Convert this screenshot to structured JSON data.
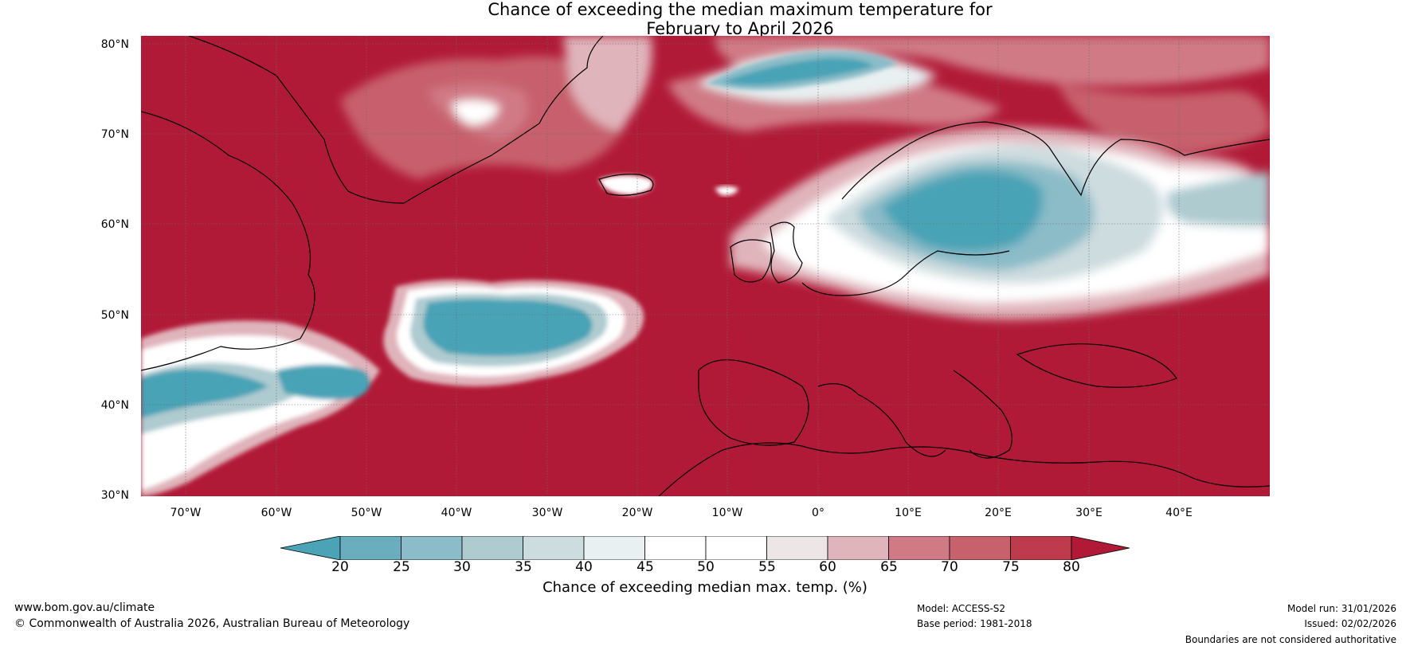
{
  "title": {
    "line1": "Chance of exceeding the median maximum temperature for",
    "line2": "February to April 2026"
  },
  "axes": {
    "latitude_labels": [
      "80°N",
      "70°N",
      "60°N",
      "50°N",
      "40°N",
      "30°N"
    ],
    "longitude_labels": [
      "70°W",
      "60°W",
      "50°W",
      "40°W",
      "30°W",
      "20°W",
      "10°W",
      "0°",
      "10°E",
      "20°E",
      "30°E",
      "40°E"
    ],
    "lat_range": [
      30,
      81
    ],
    "lon_range": [
      -75,
      50
    ]
  },
  "colorbar": {
    "ticks": [
      "20",
      "25",
      "30",
      "35",
      "40",
      "45",
      "50",
      "55",
      "60",
      "65",
      "70",
      "75",
      "80"
    ],
    "label": "Chance of exceeding median max. temp. (%)",
    "colors": {
      "below_20": "#4aa3b6",
      "20_25": "#6aaebd",
      "25_30": "#8bbcc8",
      "30_35": "#aecbd0",
      "35_40": "#cddcdf",
      "40_45": "#e8f0f1",
      "45_50": "#ffffff",
      "50_55": "#ffffff",
      "55_60": "#ece6e7",
      "60_65": "#e0b4bb",
      "65_70": "#d07a86",
      "70_75": "#c7616c",
      "75_80": "#be3b4e",
      "above_80": "#b11a37"
    }
  },
  "footer": {
    "website": "www.bom.gov.au/climate",
    "copyright": "© Commonwealth of Australia 2026, Australian Bureau of Meteorology",
    "model": "Model: ACCESS-S2",
    "base_period": "Base period: 1981-2018",
    "model_run": "Model run: 31/01/2026",
    "issued": "Issued: 02/02/2026",
    "disclaimer": "Boundaries are not considered authoritative"
  }
}
